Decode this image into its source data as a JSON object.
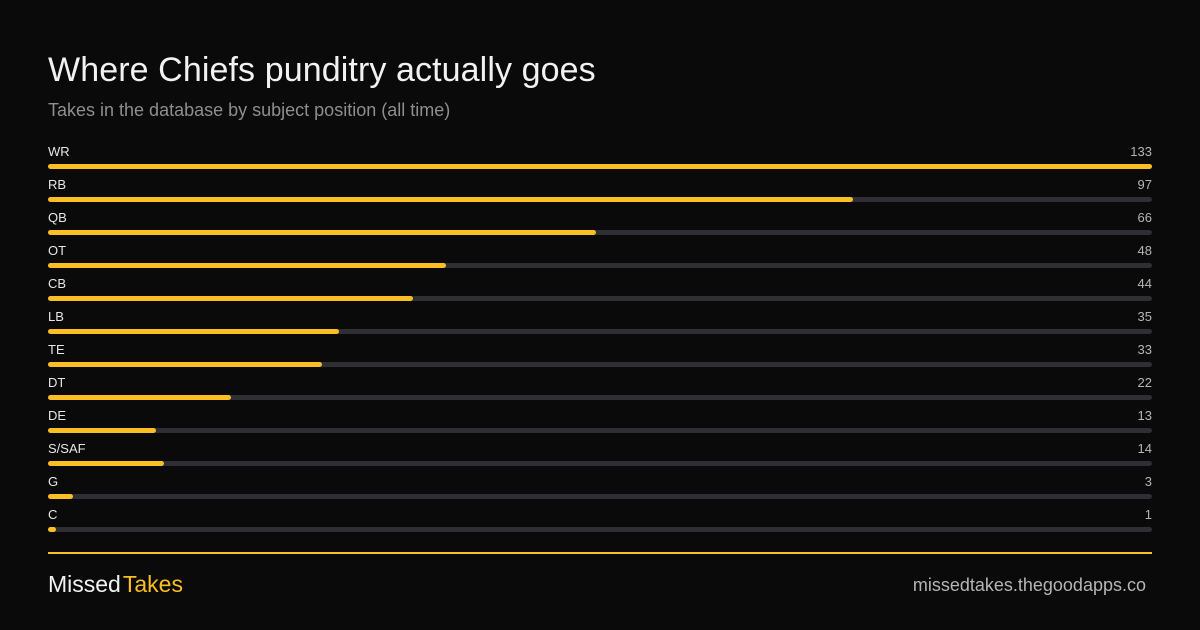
{
  "colors": {
    "background": "#0a0a0a",
    "accent": "#fbbf24",
    "track": "#2e2e33",
    "title": "#f2f2f2",
    "subtitle": "#8e8e8e"
  },
  "chart_data": {
    "type": "bar",
    "orientation": "horizontal",
    "title": "Where Chiefs punditry actually goes",
    "subtitle": "Takes in the database by subject position (all time)",
    "categories": [
      "WR",
      "RB",
      "QB",
      "OT",
      "CB",
      "LB",
      "TE",
      "DT",
      "DE",
      "S/SAF",
      "G",
      "C"
    ],
    "values": [
      133,
      97,
      66,
      48,
      44,
      35,
      33,
      22,
      13,
      14,
      3,
      1
    ],
    "xlim": [
      0,
      133
    ],
    "grid": false,
    "legend": "none"
  },
  "footer": {
    "brand_part1": "Missed",
    "brand_part2": "Takes",
    "site": "missedtakes.thegoodapps.co"
  }
}
